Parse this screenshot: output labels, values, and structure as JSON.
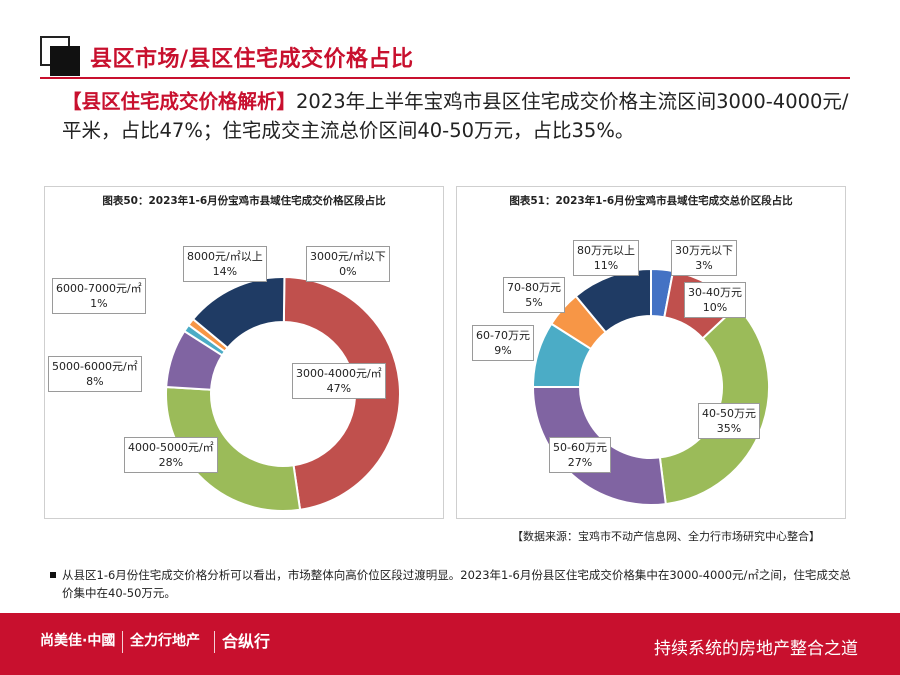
{
  "header": {
    "title": "县区市场/县区住宅成交价格占比"
  },
  "analysis": {
    "tag": "【县区住宅成交价格解析】",
    "text": "2023年上半年宝鸡市县区住宅成交价格主流区间3000-4000元/平米，占比47%；住宅成交主流总价区间40-50万元，占比35%。"
  },
  "chart_data": [
    {
      "type": "pie",
      "donut": true,
      "title": "图表50：2023年1-6月份宝鸡市县域住宅成交价格区段占比",
      "slices": [
        {
          "label": "3000元/㎡以下",
          "value": 0,
          "percent_label": "0%",
          "color": "#4472c4"
        },
        {
          "label": "3000-4000元/㎡",
          "value": 47,
          "percent_label": "47%",
          "color": "#c0504d"
        },
        {
          "label": "4000-5000元/㎡",
          "value": 28,
          "percent_label": "28%",
          "color": "#9bbb59"
        },
        {
          "label": "5000-6000元/㎡",
          "value": 8,
          "percent_label": "8%",
          "color": "#8064a2"
        },
        {
          "label": "6000-7000元/㎡",
          "value": 1,
          "percent_label": "1%",
          "color": "#4bacc6"
        },
        {
          "label": "",
          "value": 1,
          "percent_label": "",
          "color": "#f79646"
        },
        {
          "label": "8000元/㎡以上",
          "value": 14,
          "percent_label": "14%",
          "color": "#1f3b64"
        }
      ]
    },
    {
      "type": "pie",
      "donut": true,
      "title": "图表51：2023年1-6月份宝鸡市县域住宅成交总价区段占比",
      "slices": [
        {
          "label": "30万元以下",
          "value": 3,
          "percent_label": "3%",
          "color": "#4472c4"
        },
        {
          "label": "30-40万元",
          "value": 10,
          "percent_label": "10%",
          "color": "#c0504d"
        },
        {
          "label": "40-50万元",
          "value": 35,
          "percent_label": "35%",
          "color": "#9bbb59"
        },
        {
          "label": "50-60万元",
          "value": 27,
          "percent_label": "27%",
          "color": "#8064a2"
        },
        {
          "label": "60-70万元",
          "value": 9,
          "percent_label": "9%",
          "color": "#4bacc6"
        },
        {
          "label": "70-80万元",
          "value": 5,
          "percent_label": "5%",
          "color": "#f79646"
        },
        {
          "label": "80万元以上",
          "value": 11,
          "percent_label": "11%",
          "color": "#1f3b64"
        }
      ]
    }
  ],
  "source": "【数据来源：宝鸡市不动产信息网、全力行市场研究中心整合】",
  "note": "从县区1-6月份住宅成交价格分析可以看出，市场整体向高价位区段过渡明显。2023年1-6月份县区住宅成交价格集中在3000-4000元/㎡之间，住宅成交总价集中在40-50万元。",
  "footer": {
    "brand1": "尚美佳·中國",
    "brand2": "全力行地产",
    "brand3": "合纵行",
    "slogan": "持续系统的房地产整合之道"
  }
}
